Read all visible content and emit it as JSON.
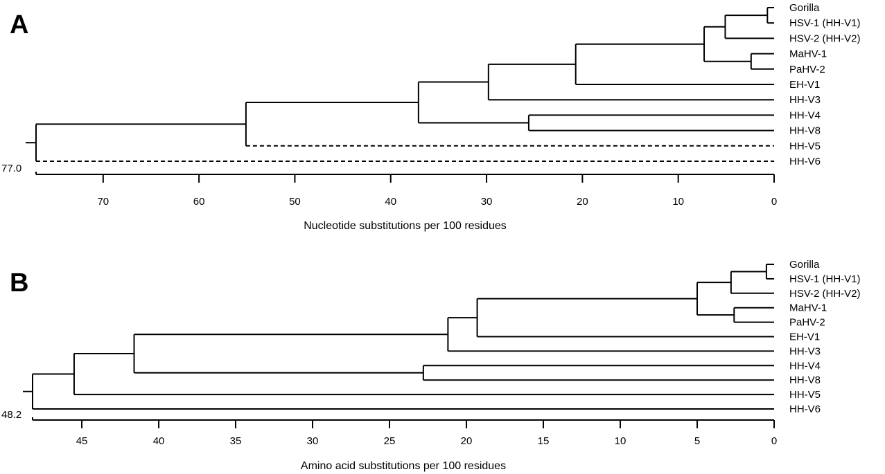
{
  "panels": [
    {
      "id": "A",
      "letter": "A",
      "axis_title": "Nucleotide substitutions per 100 residues",
      "axis_max": 77.0,
      "root_value": "77.0",
      "ticks": [
        70,
        60,
        50,
        40,
        30,
        20,
        10,
        0
      ],
      "taxa": [
        "Gorilla",
        "HSV-1 (HH-V1)",
        "HSV-2 (HH-V2)",
        "MaHV-1",
        "PaHV-2",
        "EH-V1",
        "HH-V3",
        "HH-V4",
        "HH-V8",
        "HH-V5",
        "HH-V6"
      ],
      "nodes": [
        {
          "height": 0.7,
          "children": [
            "t0",
            "t1"
          ]
        },
        {
          "height": 5.1,
          "children": [
            "n0",
            "t2"
          ]
        },
        {
          "height": 2.4,
          "children": [
            "t3",
            "t4"
          ]
        },
        {
          "height": 7.3,
          "children": [
            "n1",
            "n2"
          ]
        },
        {
          "height": 20.7,
          "children": [
            "n3",
            "t5"
          ]
        },
        {
          "height": 29.8,
          "children": [
            "n4",
            "t6"
          ]
        },
        {
          "height": 25.6,
          "children": [
            "t7",
            "t8"
          ]
        },
        {
          "height": 37.1,
          "children": [
            "n5",
            "n6"
          ]
        },
        {
          "height": 55.1,
          "children": [
            "n7",
            "t9"
          ],
          "dashed": [
            "t9"
          ]
        },
        {
          "height": 77.0,
          "children": [
            "n8",
            "t10"
          ],
          "dashed": [
            "t10"
          ]
        }
      ]
    },
    {
      "id": "B",
      "letter": "B",
      "axis_title": "Amino acid substitutions per 100 residues",
      "axis_max": 48.2,
      "root_value": "48.2",
      "ticks": [
        45,
        40,
        35,
        30,
        25,
        20,
        15,
        10,
        5,
        0
      ],
      "taxa": [
        "Gorilla",
        "HSV-1 (HH-V1)",
        "HSV-2 (HH-V2)",
        "MaHV-1",
        "PaHV-2",
        "EH-V1",
        "HH-V3",
        "HH-V4",
        "HH-V8",
        "HH-V5",
        "HH-V6"
      ],
      "nodes": [
        {
          "height": 0.5,
          "children": [
            "t0",
            "t1"
          ]
        },
        {
          "height": 2.8,
          "children": [
            "n0",
            "t2"
          ]
        },
        {
          "height": 2.6,
          "children": [
            "t3",
            "t4"
          ]
        },
        {
          "height": 5.0,
          "children": [
            "n1",
            "n2"
          ]
        },
        {
          "height": 19.3,
          "children": [
            "n3",
            "t5"
          ]
        },
        {
          "height": 21.2,
          "children": [
            "n4",
            "t6"
          ]
        },
        {
          "height": 22.8,
          "children": [
            "t7",
            "t8"
          ]
        },
        {
          "height": 41.6,
          "children": [
            "n5",
            "n6"
          ]
        },
        {
          "height": 45.5,
          "children": [
            "n7",
            "t9"
          ]
        },
        {
          "height": 48.2,
          "children": [
            "n8",
            "t10"
          ]
        }
      ]
    }
  ]
}
